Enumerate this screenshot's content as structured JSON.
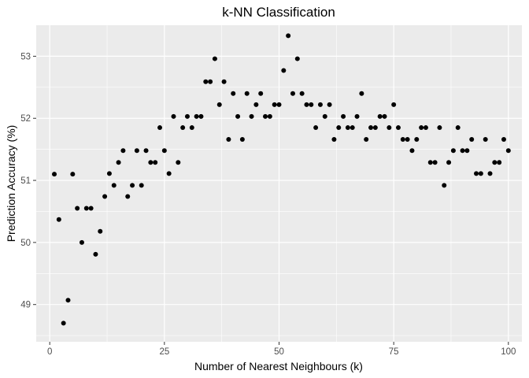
{
  "chart_data": {
    "type": "scatter",
    "title": "k-NN Classification",
    "xlabel": "Number of Nearest Neighbours (k)",
    "ylabel": "Prediction Accuracy (%)",
    "xlim": [
      -2.95,
      102.95
    ],
    "ylim": [
      48.4,
      53.5
    ],
    "x_ticks": [
      0,
      25,
      50,
      75,
      100
    ],
    "y_ticks": [
      49,
      50,
      51,
      52,
      53
    ],
    "x_tick_labels": [
      "0",
      "25",
      "50",
      "75",
      "100"
    ],
    "y_tick_labels": [
      "49",
      "50",
      "51",
      "52",
      "53"
    ],
    "grid": true,
    "legend": "none",
    "colors": {
      "panel_background": "#ebebeb",
      "grid_major": "#ffffff",
      "point": "#000000"
    },
    "x": [
      1,
      2,
      3,
      4,
      5,
      6,
      7,
      8,
      9,
      10,
      11,
      12,
      13,
      14,
      15,
      16,
      17,
      18,
      19,
      20,
      21,
      22,
      23,
      24,
      25,
      26,
      27,
      28,
      29,
      30,
      31,
      32,
      33,
      34,
      35,
      36,
      37,
      38,
      39,
      40,
      41,
      42,
      43,
      44,
      45,
      46,
      47,
      48,
      49,
      50,
      51,
      52,
      53,
      54,
      55,
      56,
      57,
      58,
      59,
      60,
      61,
      62,
      63,
      64,
      65,
      66,
      67,
      68,
      69,
      70,
      71,
      72,
      73,
      74,
      75,
      76,
      77,
      78,
      79,
      80,
      81,
      82,
      83,
      84,
      85,
      86,
      87,
      88,
      89,
      90,
      91,
      92,
      93,
      94,
      95,
      96,
      97,
      98,
      99,
      100
    ],
    "y": [
      51.1,
      50.37,
      48.7,
      49.07,
      51.1,
      50.55,
      50.0,
      50.55,
      50.55,
      49.81,
      50.18,
      50.74,
      51.11,
      50.92,
      51.29,
      51.48,
      50.74,
      50.92,
      51.48,
      50.92,
      51.48,
      51.29,
      51.29,
      51.85,
      51.48,
      51.11,
      52.03,
      51.29,
      51.85,
      52.03,
      51.85,
      52.03,
      52.03,
      52.59,
      52.59,
      52.96,
      52.22,
      52.59,
      51.66,
      52.4,
      52.03,
      51.66,
      52.4,
      52.03,
      52.22,
      52.4,
      52.03,
      52.03,
      52.22,
      52.22,
      52.77,
      53.33,
      52.4,
      52.96,
      52.4,
      52.22,
      52.22,
      51.85,
      52.22,
      52.03,
      52.22,
      51.66,
      51.85,
      52.03,
      51.85,
      51.85,
      52.03,
      52.4,
      51.66,
      51.85,
      51.85,
      52.03,
      52.03,
      51.85,
      52.22,
      51.85,
      51.66,
      51.66,
      51.48,
      51.66,
      51.85,
      51.85,
      51.29,
      51.29,
      51.85,
      50.92,
      51.29,
      51.48,
      51.85,
      51.48,
      51.48,
      51.66,
      51.11,
      51.11,
      51.66,
      51.11,
      51.29,
      51.29,
      51.66,
      51.48
    ]
  }
}
